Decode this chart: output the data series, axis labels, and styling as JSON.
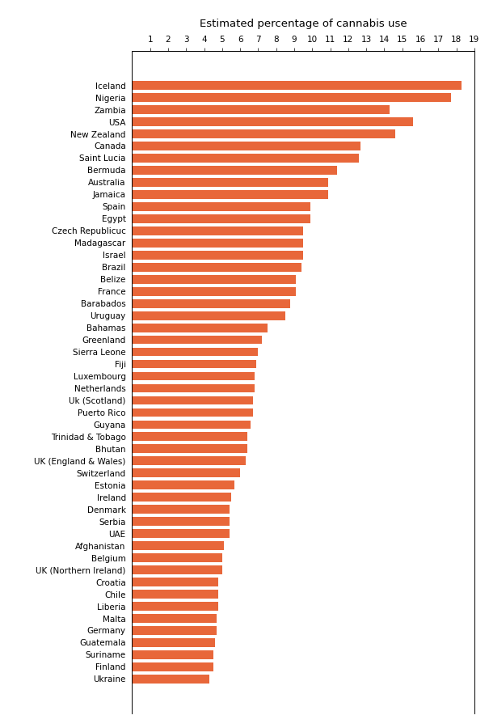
{
  "title": "Estimated percentage of cannabis use",
  "countries": [
    "Iceland",
    "Nigeria",
    "Zambia",
    "USA",
    "New Zealand",
    "Canada",
    "Saint Lucia",
    "Bermuda",
    "Australia",
    "Jamaica",
    "Spain",
    "Egypt",
    "Czech Republicuc",
    "Madagascar",
    "Israel",
    "Brazil",
    "Belize",
    "France",
    "Barabados",
    "Uruguay",
    "Bahamas",
    "Greenland",
    "Sierra Leone",
    "Fiji",
    "Luxembourg",
    "Netherlands",
    "Uk (Scotland)",
    "Puerto Rico",
    "Guyana",
    "Trinidad & Tobago",
    "Bhutan",
    "UK (England & Wales)",
    "Switzerland",
    "Estonia",
    "Ireland",
    "Denmark",
    "Serbia",
    "UAE",
    "Afghanistan",
    "Belgium",
    "UK (Northern Ireland)",
    "Croatia",
    "Chile",
    "Liberia",
    "Malta",
    "Germany",
    "Guatemala",
    "Suriname",
    "Finland",
    "Ukraine"
  ],
  "values": [
    18.3,
    17.7,
    14.3,
    15.6,
    14.6,
    12.7,
    12.6,
    11.4,
    10.9,
    10.9,
    9.9,
    9.9,
    9.5,
    9.5,
    9.5,
    9.4,
    9.1,
    9.1,
    8.8,
    8.5,
    7.5,
    7.2,
    7.0,
    6.9,
    6.8,
    6.8,
    6.7,
    6.7,
    6.6,
    6.4,
    6.4,
    6.3,
    6.0,
    5.7,
    5.5,
    5.4,
    5.4,
    5.4,
    5.1,
    5.0,
    5.0,
    4.8,
    4.8,
    4.8,
    4.7,
    4.7,
    4.6,
    4.5,
    4.5,
    4.3
  ],
  "bar_color": "#E8673A",
  "xlim": [
    0,
    19
  ],
  "xticks": [
    1,
    2,
    3,
    4,
    5,
    6,
    7,
    8,
    9,
    10,
    11,
    12,
    13,
    14,
    15,
    16,
    17,
    18,
    19
  ],
  "background_color": "#ffffff",
  "title_fontsize": 9.5,
  "tick_fontsize": 7.5,
  "label_fontsize": 7.5,
  "figwidth": 6.05,
  "figheight": 9.0,
  "bar_height": 0.72
}
